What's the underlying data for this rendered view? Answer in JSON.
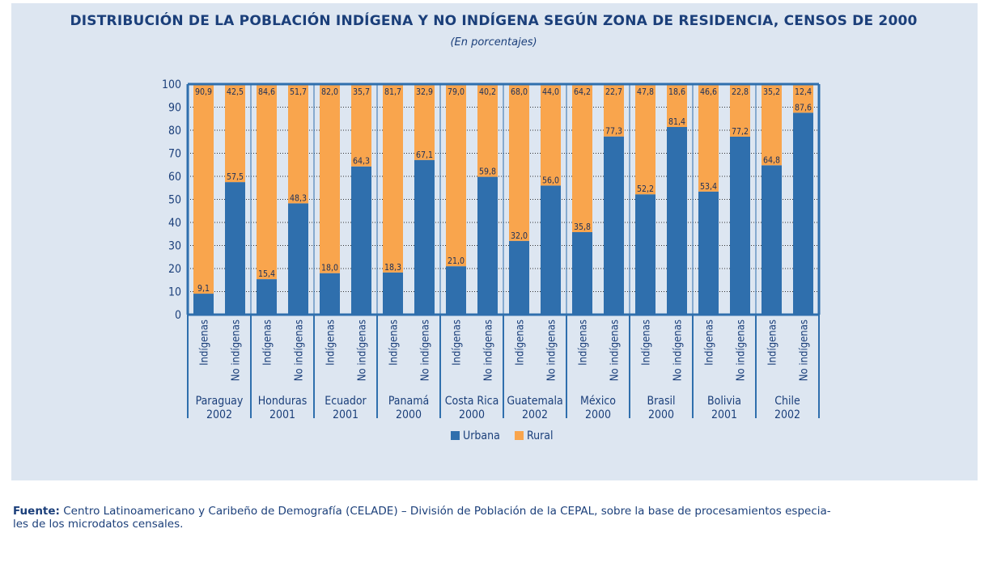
{
  "title": "DISTRIBUCIÓN DE LA POBLACIÓN INDÍGENA Y NO INDÍGENA SEGÚN ZONA DE RESIDENCIA, CENSOS DE 2000",
  "subtitle": "(En porcentajes)",
  "source_label": "Fuente:",
  "source_line1": "Centro Latinoamericano y Caribeño de Demografía (CELADE) – División de Población de la CEPAL, sobre la base de procesamientos especia-",
  "source_line2": "les de los microdatos censales.",
  "colors": {
    "urbana": "#2f6fad",
    "rural": "#f9a54d",
    "axis": "#2f6fad",
    "grid": "#333333"
  },
  "chart_data": {
    "type": "bar",
    "stacked": true,
    "ylim": [
      0,
      100
    ],
    "yticks": [
      "0",
      "10",
      "20",
      "30",
      "40",
      "50",
      "60",
      "70",
      "80",
      "90",
      "100"
    ],
    "grid": true,
    "legend_position": "bottom",
    "categories": [
      {
        "group": "Paraguay",
        "year": "2002",
        "type": "Indígenas"
      },
      {
        "group": "Paraguay",
        "year": "2002",
        "type": "No indígenas"
      },
      {
        "group": "Honduras",
        "year": "2001",
        "type": "Indígenas"
      },
      {
        "group": "Honduras",
        "year": "2001",
        "type": "No indígenas"
      },
      {
        "group": "Ecuador",
        "year": "2001",
        "type": "Indígenas"
      },
      {
        "group": "Ecuador",
        "year": "2001",
        "type": "No indígenas"
      },
      {
        "group": "Panamá",
        "year": "2000",
        "type": "Indígenas"
      },
      {
        "group": "Panamá",
        "year": "2000",
        "type": "No indígenas"
      },
      {
        "group": "Costa Rica",
        "year": "2000",
        "type": "Indígenas"
      },
      {
        "group": "Costa Rica",
        "year": "2000",
        "type": "No indígenas"
      },
      {
        "group": "Guatemala",
        "year": "2002",
        "type": "Indígenas"
      },
      {
        "group": "Guatemala",
        "year": "2002",
        "type": "No indígenas"
      },
      {
        "group": "México",
        "year": "2000",
        "type": "Indígenas"
      },
      {
        "group": "México",
        "year": "2000",
        "type": "No indígenas"
      },
      {
        "group": "Brasil",
        "year": "2000",
        "type": "Indígenas"
      },
      {
        "group": "Brasil",
        "year": "2000",
        "type": "No indígenas"
      },
      {
        "group": "Bolivia",
        "year": "2001",
        "type": "Indígenas"
      },
      {
        "group": "Bolivia",
        "year": "2001",
        "type": "No indígenas"
      },
      {
        "group": "Chile",
        "year": "2002",
        "type": "Indígenas"
      },
      {
        "group": "Chile",
        "year": "2002",
        "type": "No indígenas"
      }
    ],
    "groups": [
      {
        "name": "Paraguay",
        "year": "2002"
      },
      {
        "name": "Honduras",
        "year": "2001"
      },
      {
        "name": "Ecuador",
        "year": "2001"
      },
      {
        "name": "Panamá",
        "year": "2000"
      },
      {
        "name": "Costa Rica",
        "year": "2000"
      },
      {
        "name": "Guatemala",
        "year": "2002"
      },
      {
        "name": "México",
        "year": "2000"
      },
      {
        "name": "Brasil",
        "year": "2000"
      },
      {
        "name": "Bolivia",
        "year": "2001"
      },
      {
        "name": "Chile",
        "year": "2002"
      }
    ],
    "series": [
      {
        "name": "Urbana",
        "values": [
          9.1,
          57.5,
          15.4,
          48.3,
          18.0,
          64.3,
          18.3,
          67.1,
          21.0,
          59.8,
          32.0,
          56.0,
          35.8,
          77.3,
          52.2,
          81.4,
          53.4,
          77.2,
          64.8,
          87.6
        ],
        "labels": [
          "9,1",
          "57,5",
          "15,4",
          "48,3",
          "18,0",
          "64,3",
          "18,3",
          "67,1",
          "21,0",
          "59,8",
          "32,0",
          "56,0",
          "35,8",
          "77,3",
          "52,2",
          "81,4",
          "53,4",
          "77,2",
          "64,8",
          "87,6"
        ]
      },
      {
        "name": "Rural",
        "values": [
          90.9,
          42.5,
          84.6,
          51.7,
          82.0,
          35.7,
          81.7,
          32.9,
          79.0,
          40.2,
          68.0,
          44.0,
          64.2,
          22.7,
          47.8,
          18.6,
          46.6,
          22.8,
          35.2,
          12.4
        ],
        "labels": [
          "90,9",
          "42,5",
          "84,6",
          "51,7",
          "82,0",
          "35,7",
          "81,7",
          "32,9",
          "79,0",
          "40,2",
          "68,0",
          "44,0",
          "64,2",
          "22,7",
          "47,8",
          "18,6",
          "46,6",
          "22,8",
          "35,2",
          "12,4"
        ]
      }
    ]
  }
}
